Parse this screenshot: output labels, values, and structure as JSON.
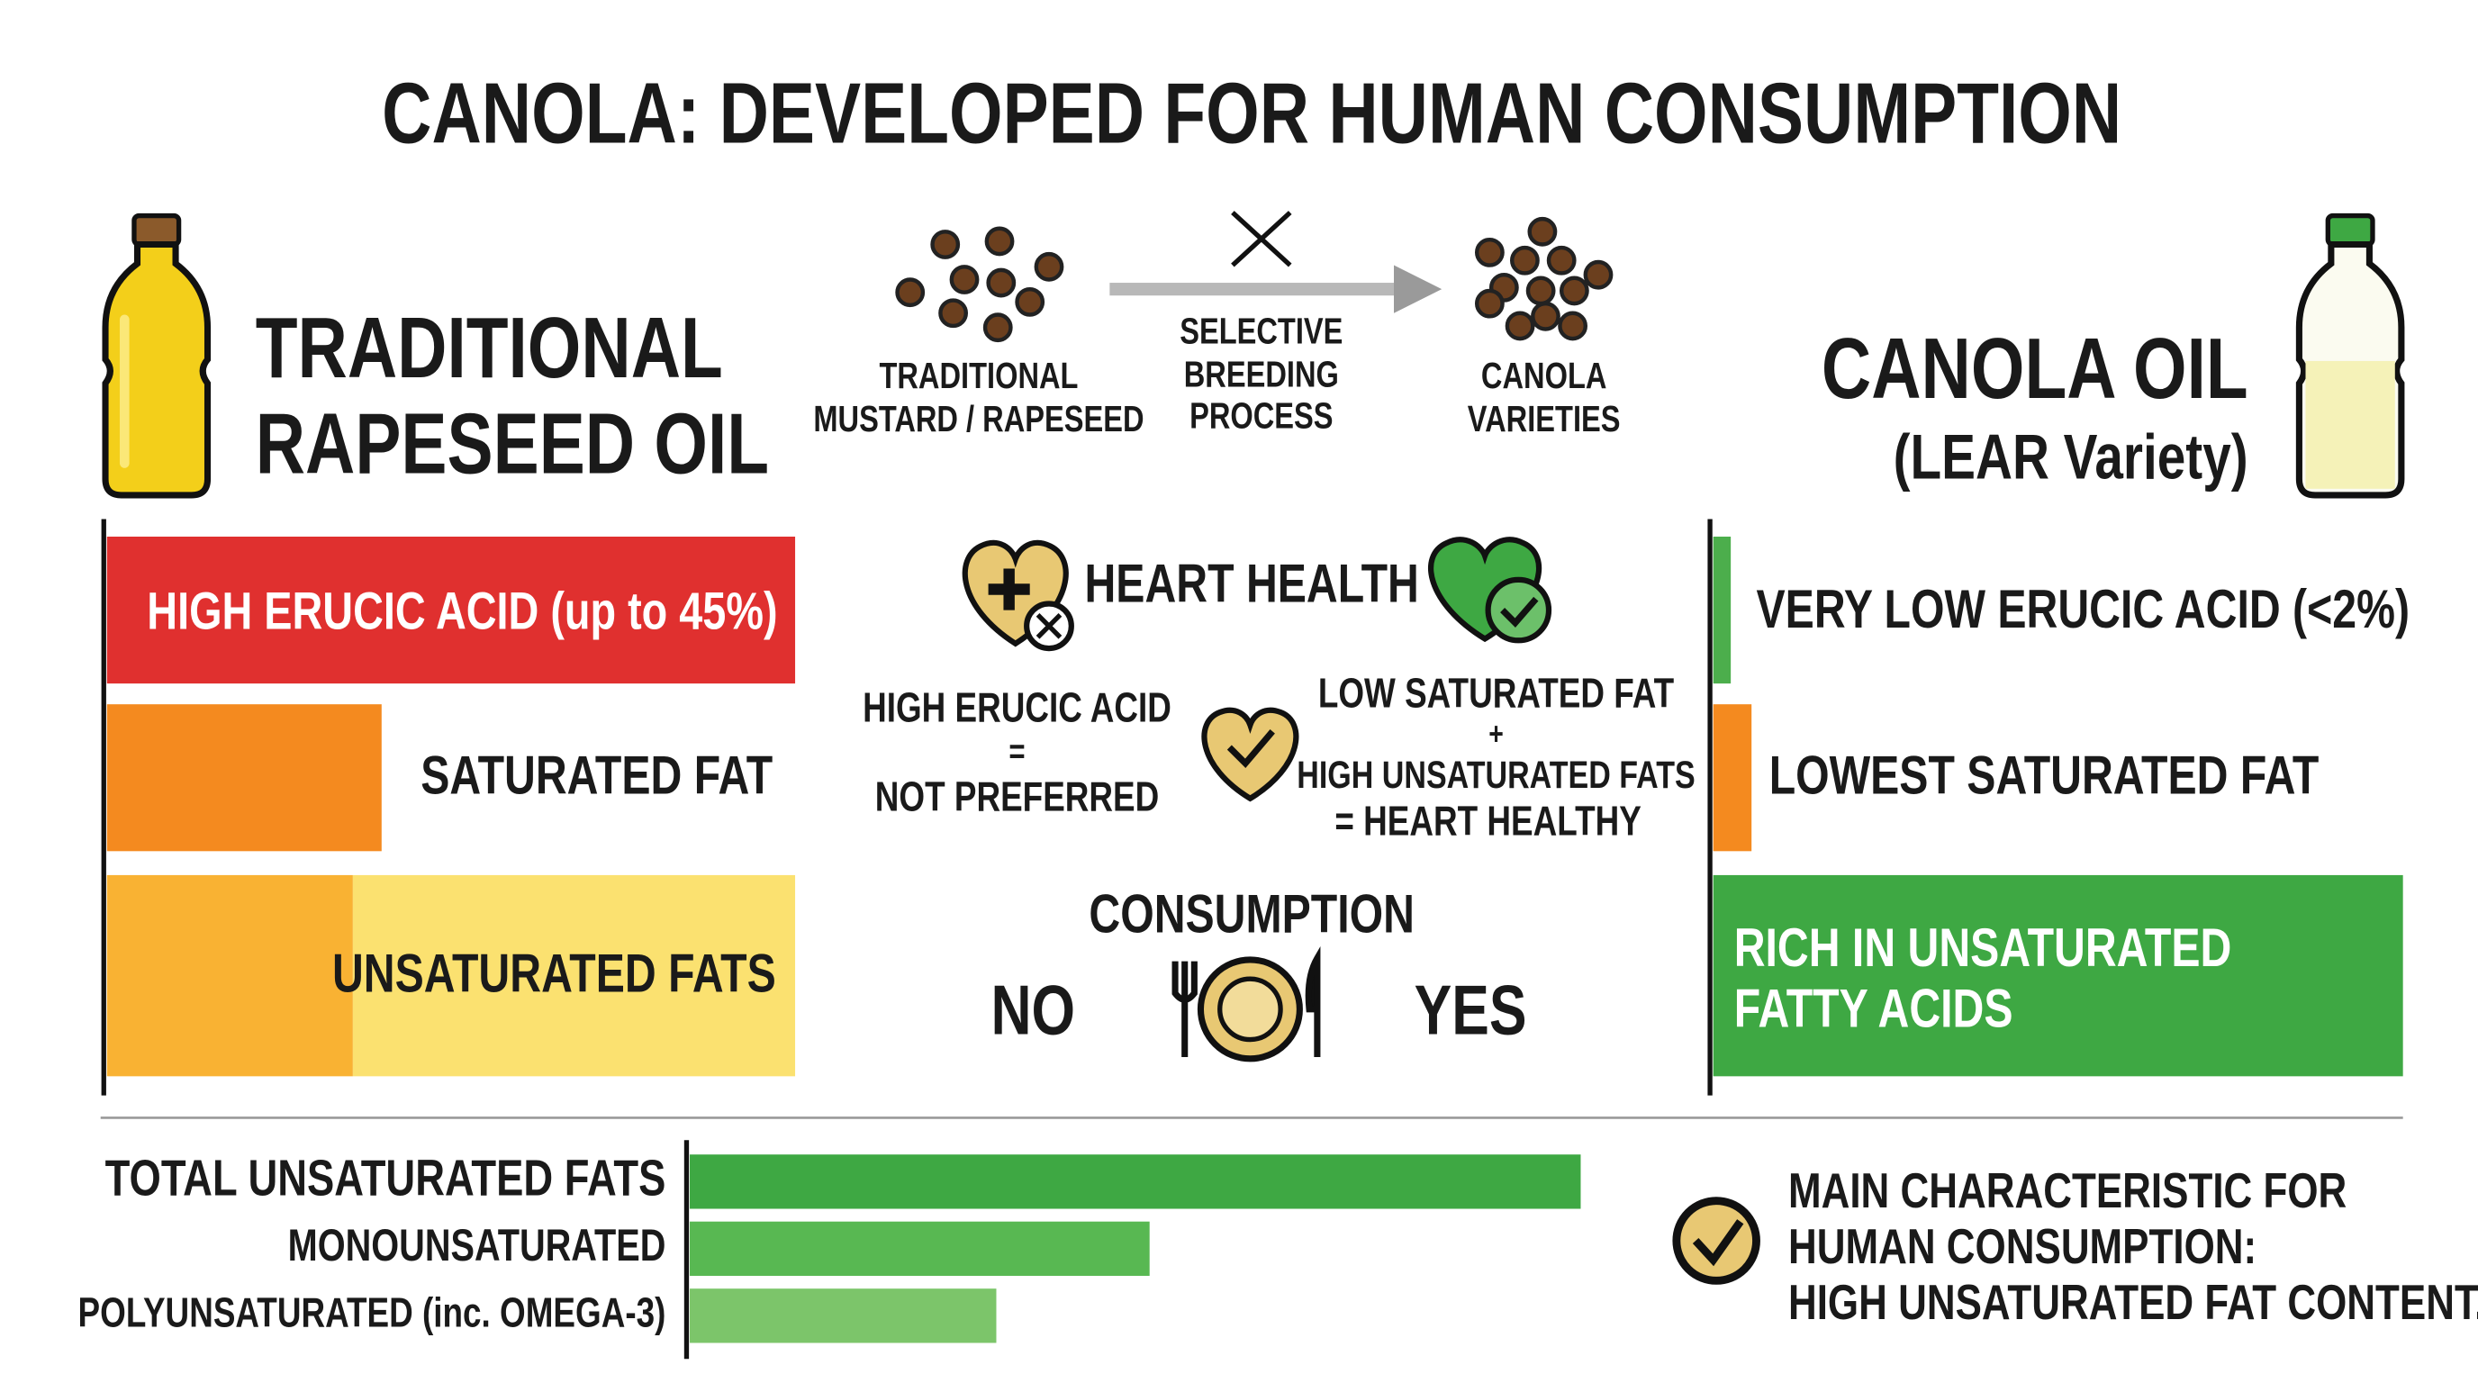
{
  "title": "CANOLA: DEVELOPED FOR HUMAN CONSUMPTION",
  "traditional": {
    "name_lines": [
      "TRADITIONAL",
      "RAPESEED OIL"
    ],
    "rows": [
      "HIGH ERUCIC ACID (up to 45%)",
      "SATURATED FAT",
      "UNSATURATED FATS"
    ]
  },
  "process": {
    "from_lines": [
      "TRADITIONAL",
      "MUSTARD / RAPESEED"
    ],
    "step_lines": [
      "SELECTIVE",
      "BREEDING",
      "PROCESS"
    ],
    "to_lines": [
      "CANOLA",
      "VARIETIES"
    ]
  },
  "canola": {
    "name": "CANOLA OIL",
    "variety": "(LEAR Variety)",
    "rows": [
      "VERY LOW ERUCIC ACID (<2%)",
      "LOWEST SATURATED FAT"
    ],
    "rich_lines": [
      "RICH IN UNSATURATED",
      "FATTY ACIDS"
    ]
  },
  "middle": {
    "heart_health": "HEART HEALTH",
    "bad_lines": [
      "HIGH ERUCIC ACID",
      "=",
      "NOT PREFERRED"
    ],
    "good_lines": [
      "LOW SATURATED FAT",
      "+",
      "HIGH UNSATURATED FATS",
      "= HEART HEALTHY"
    ],
    "consumption": "CONSUMPTION",
    "no": "NO",
    "yes": "YES"
  },
  "bar_chart": {
    "type": "bar",
    "xlim": [
      0,
      100
    ],
    "bars": [
      {
        "label": "TOTAL UNSATURATED FATS",
        "value": 93,
        "color": "#3ea843"
      },
      {
        "label": "MONOUNSATURATED",
        "value": 48,
        "color": "#58b852"
      },
      {
        "label": "POLYUNSATURATED (inc. OMEGA-3)",
        "value": 32,
        "color": "#7cc56a"
      }
    ]
  },
  "summary_lines": [
    "MAIN CHARACTERISTIC FOR",
    "HUMAN CONSUMPTION:",
    "HIGH UNSATURATED FAT CONTENT."
  ]
}
